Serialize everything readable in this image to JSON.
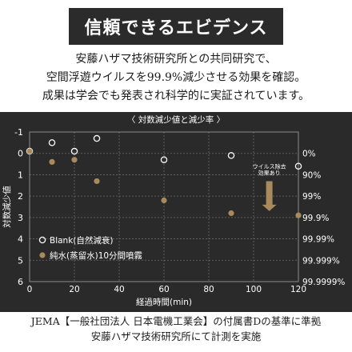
{
  "header": {
    "title": "信頼できるエビデンス"
  },
  "intro": {
    "line1": "安藤ハザマ技術研究所との共同研究で、",
    "line2": "空間浮遊ウイルスを99.9%減少させる効果を確認。",
    "line3": "成果は学会でも発表され科学的に実証されています。"
  },
  "footer": {
    "line1": "JEMA【一般社団法人 日本電機工業会】の付属書Dの基準に準拠",
    "line2": "安藤ハザマ技術研究所にて計測を実施"
  },
  "colors": {
    "panel_bg": "#2a2a2a",
    "grid": "#6a6a6a",
    "text": "#ffffff",
    "series_steam": "#a88a5c",
    "series_blank_stroke": "#ffffff",
    "arrow": "#a88a5c"
  },
  "chart_data": {
    "type": "scatter",
    "title": "対数減少値と減少率",
    "xlabel": "経過時間(min)",
    "ylabel": "対数減少値",
    "xlim": [
      0,
      120
    ],
    "ylim": [
      -1,
      6
    ],
    "y_inverted": true,
    "x_ticks": [
      0,
      20,
      40,
      60,
      80,
      100,
      120
    ],
    "y_ticks": [
      -1,
      0,
      1,
      2,
      3,
      4,
      5,
      6
    ],
    "right_axis_labels": [
      {
        "y": 0,
        "label": "0%"
      },
      {
        "y": 1,
        "label": "90%"
      },
      {
        "y": 2,
        "label": "99%"
      },
      {
        "y": 3,
        "label": "99.9%"
      },
      {
        "y": 4,
        "label": "99.99%"
      },
      {
        "y": 5,
        "label": "99.999%"
      },
      {
        "y": 6,
        "label": "99.9999%"
      }
    ],
    "grid": true,
    "legend_position": "bottom-left",
    "series": [
      {
        "name": "Blank(自然減衰)",
        "marker": "open-circle",
        "color": "#ffffff",
        "points": [
          [
            0,
            -0.1
          ],
          [
            10,
            -0.5
          ],
          [
            20,
            -0.1
          ],
          [
            30,
            -0.7
          ],
          [
            60,
            0.3
          ],
          [
            90,
            0.1
          ],
          [
            120,
            0.6
          ]
        ]
      },
      {
        "name": "純水(蒸留水)10分間噴霧",
        "marker": "filled-circle",
        "color": "#a88a5c",
        "points": [
          [
            0,
            -0.1
          ],
          [
            10,
            0.4
          ],
          [
            20,
            0.3
          ],
          [
            30,
            1.3
          ],
          [
            60,
            2.2
          ],
          [
            90,
            2.8
          ],
          [
            120,
            2.9
          ]
        ]
      }
    ],
    "annotation": {
      "text_line1": "ウイルス除去",
      "text_line2": "効果あり",
      "x": 107,
      "y_from": 1.3,
      "y_to": 2.7
    }
  }
}
